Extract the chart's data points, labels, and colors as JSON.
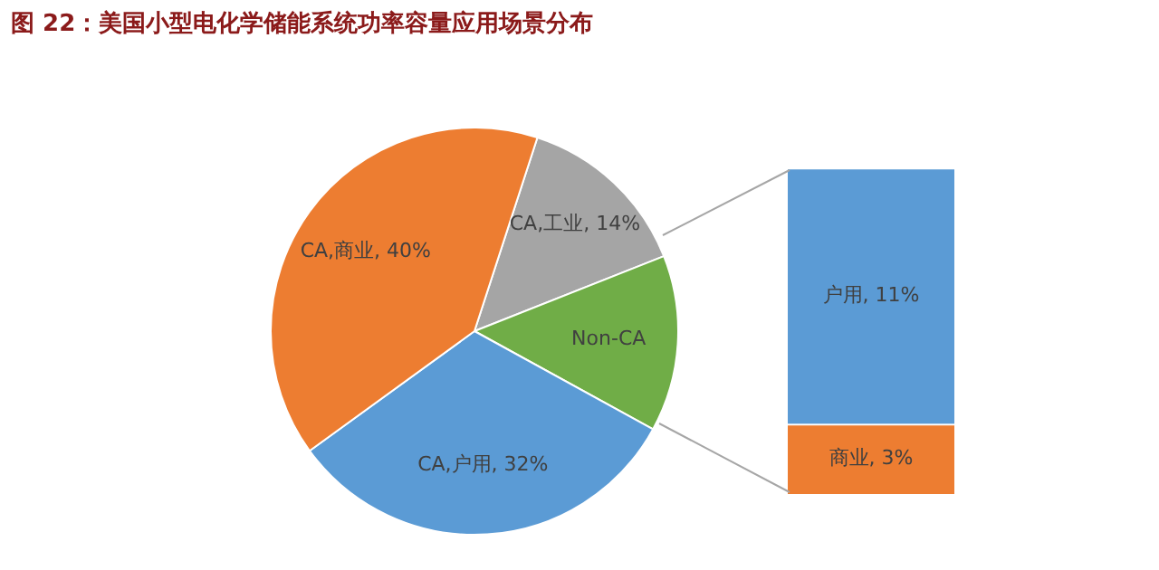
{
  "chart_data": [
    {
      "type": "pie",
      "title": "图 22：美国小型电化学储能系统功率容量应用场景分布",
      "categories": [
        "CA,工业",
        "Non-CA",
        "CA,户用",
        "CA,商业"
      ],
      "values": [
        14,
        14,
        32,
        40
      ],
      "colors": [
        "#a5a5a5",
        "#70ad47",
        "#5b9bd5",
        "#ed7d31"
      ],
      "value_labels": [
        "14%",
        null,
        "32%",
        "40%"
      ]
    },
    {
      "type": "bar",
      "stacked": true,
      "categories": [
        null
      ],
      "series": [
        {
          "color": "#ed7d31",
          "values": [
            3
          ],
          "value_labels": [
            "商业, 3%"
          ]
        },
        {
          "color": "#5b9bd5",
          "values": [
            11
          ],
          "value_labels": [
            "户用, 11%"
          ]
        }
      ]
    }
  ]
}
